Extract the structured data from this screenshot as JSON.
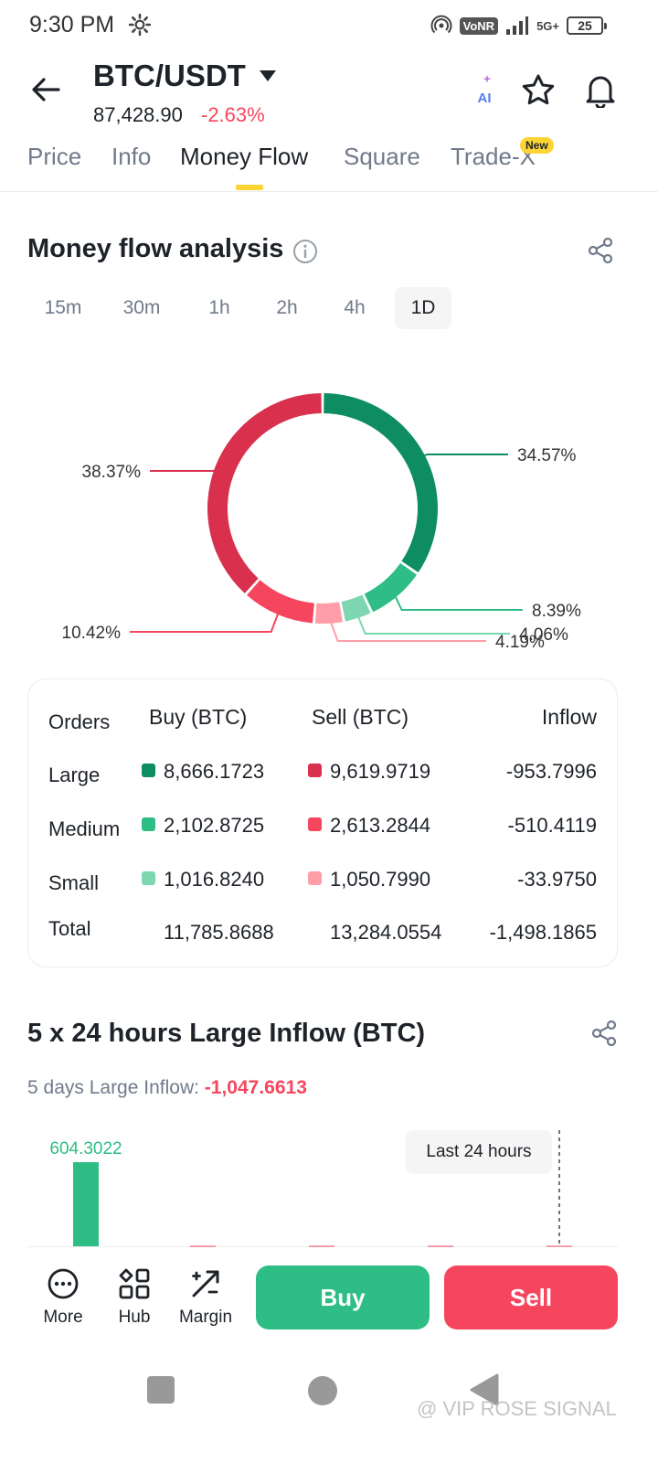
{
  "status_bar": {
    "time": "9:30 PM",
    "network_badge": "VoNR",
    "network_type": "5G+",
    "battery": "25"
  },
  "header": {
    "pair": "BTC/USDT",
    "price": "87,428.90",
    "change": "-2.63%",
    "ai_label": "AI"
  },
  "tabs": [
    {
      "label": "Price"
    },
    {
      "label": "Info"
    },
    {
      "label": "Money Flow"
    },
    {
      "label": "Square"
    },
    {
      "label": "Trade-X",
      "badge": "New"
    }
  ],
  "money_flow": {
    "title": "Money flow analysis",
    "periods": [
      "15m",
      "30m",
      "1h",
      "2h",
      "4h",
      "1D"
    ],
    "selected_period": "1D"
  },
  "chart_data": [
    {
      "type": "pie",
      "labels": [
        "34.57%",
        "8.39%",
        "4.06%",
        "4.19%",
        "10.42%",
        "38.37%"
      ],
      "values": [
        34.57,
        8.39,
        4.06,
        4.19,
        10.42,
        38.37
      ],
      "colors": [
        "#0e8d62",
        "#2ebd85",
        "#7dd8b2",
        "#ff9ea8",
        "#f6465d",
        "#d9304e"
      ]
    },
    {
      "type": "bar",
      "values": [
        604.3022
      ],
      "value_label": "604.3022",
      "tooltip": "Last 24 hours"
    }
  ],
  "orders_table": {
    "headers": [
      "Orders",
      "Buy (BTC)",
      "Sell (BTC)",
      "Inflow"
    ],
    "rows": [
      {
        "label": "Large",
        "buy": "8,666.1723",
        "sell": "9,619.9719",
        "inflow": "-953.7996",
        "buy_color": "#0e8d62",
        "sell_color": "#d9304e"
      },
      {
        "label": "Medium",
        "buy": "2,102.8725",
        "sell": "2,613.2844",
        "inflow": "-510.4119",
        "buy_color": "#2ebd85",
        "sell_color": "#f6465d"
      },
      {
        "label": "Small",
        "buy": "1,016.8240",
        "sell": "1,050.7990",
        "inflow": "-33.9750",
        "buy_color": "#7dd8b2",
        "sell_color": "#ff9ea8"
      }
    ],
    "total": {
      "label": "Total",
      "buy": "11,785.8688",
      "sell": "13,284.0554",
      "inflow": "-1,498.1865"
    }
  },
  "large_inflow": {
    "title": "5 x 24 hours Large Inflow (BTC)",
    "summary_label": "5 days Large Inflow:",
    "summary_value": "-1,047.6613"
  },
  "bottom_nav": {
    "items": [
      {
        "label": "More",
        "icon": "more-icon"
      },
      {
        "label": "Hub",
        "icon": "hub-icon"
      },
      {
        "label": "Margin",
        "icon": "margin-icon"
      }
    ],
    "buy_label": "Buy",
    "sell_label": "Sell"
  },
  "watermark": "@ VIP ROSE SIGNAL",
  "colors": {
    "up": "#2ebd85",
    "down": "#f6465d",
    "accent": "#fcd535"
  }
}
